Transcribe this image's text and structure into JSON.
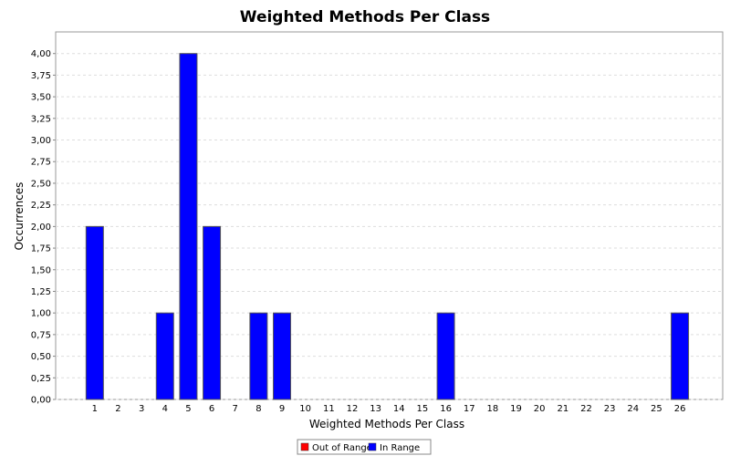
{
  "chart_data": {
    "type": "bar",
    "title": "Weighted Methods Per Class",
    "xlabel": "Weighted Methods Per Class",
    "ylabel": "Occurrences",
    "categories": [
      "1",
      "2",
      "3",
      "4",
      "5",
      "6",
      "7",
      "8",
      "9",
      "10",
      "11",
      "12",
      "13",
      "14",
      "15",
      "16",
      "17",
      "18",
      "19",
      "20",
      "21",
      "22",
      "23",
      "24",
      "25",
      "26"
    ],
    "series": [
      {
        "name": "Out of Range",
        "color": "#ff0000",
        "values": [
          0,
          0,
          0,
          0,
          0,
          0,
          0,
          0,
          0,
          0,
          0,
          0,
          0,
          0,
          0,
          0,
          0,
          0,
          0,
          0,
          0,
          0,
          0,
          0,
          0,
          0
        ]
      },
      {
        "name": "In Range",
        "color": "#0000ff",
        "values": [
          2,
          0,
          0,
          1,
          4,
          2,
          0,
          1,
          1,
          0,
          0,
          0,
          0,
          0,
          0,
          1,
          0,
          0,
          0,
          0,
          0,
          0,
          0,
          0,
          0,
          1
        ]
      }
    ],
    "ylim": [
      0,
      4.25
    ],
    "yticks": [
      "0,00",
      "0,25",
      "0,50",
      "0,75",
      "1,00",
      "1,25",
      "1,50",
      "1,75",
      "2,00",
      "2,25",
      "2,50",
      "2,75",
      "3,00",
      "3,25",
      "3,50",
      "3,75",
      "4,00"
    ],
    "grid": true,
    "legend_position": "bottom"
  }
}
